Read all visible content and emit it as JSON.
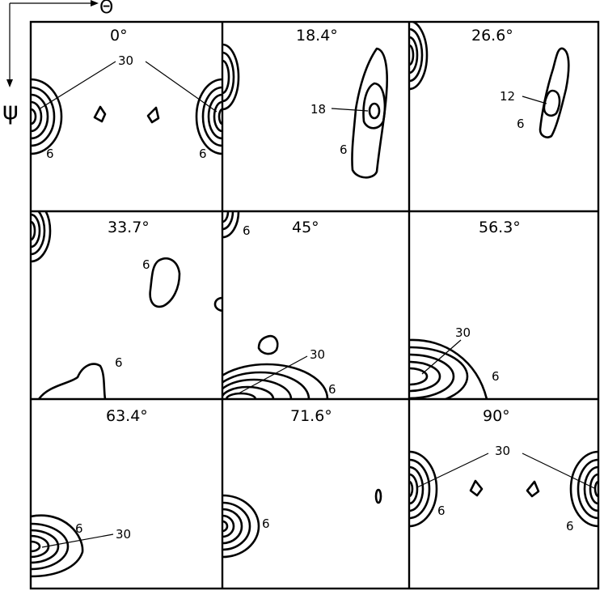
{
  "axes": {
    "horizontal_symbol": "Θ",
    "vertical_symbol": "ψ"
  },
  "panels": [
    {
      "angle": "0°",
      "labels": [
        "30",
        "6",
        "6"
      ]
    },
    {
      "angle": "18.4°",
      "labels": [
        "18",
        "6"
      ]
    },
    {
      "angle": "26.6°",
      "labels": [
        "12",
        "6"
      ]
    },
    {
      "angle": "33.7°",
      "labels": [
        "6",
        "6"
      ]
    },
    {
      "angle": "45°",
      "labels": [
        "6",
        "30",
        "6"
      ]
    },
    {
      "angle": "56.3°",
      "labels": [
        "30",
        "6"
      ]
    },
    {
      "angle": "63.4°",
      "labels": [
        "6",
        "30"
      ]
    },
    {
      "angle": "71.6°",
      "labels": [
        "6"
      ]
    },
    {
      "angle": "90°",
      "labels": [
        "30",
        "6",
        "6"
      ]
    }
  ]
}
